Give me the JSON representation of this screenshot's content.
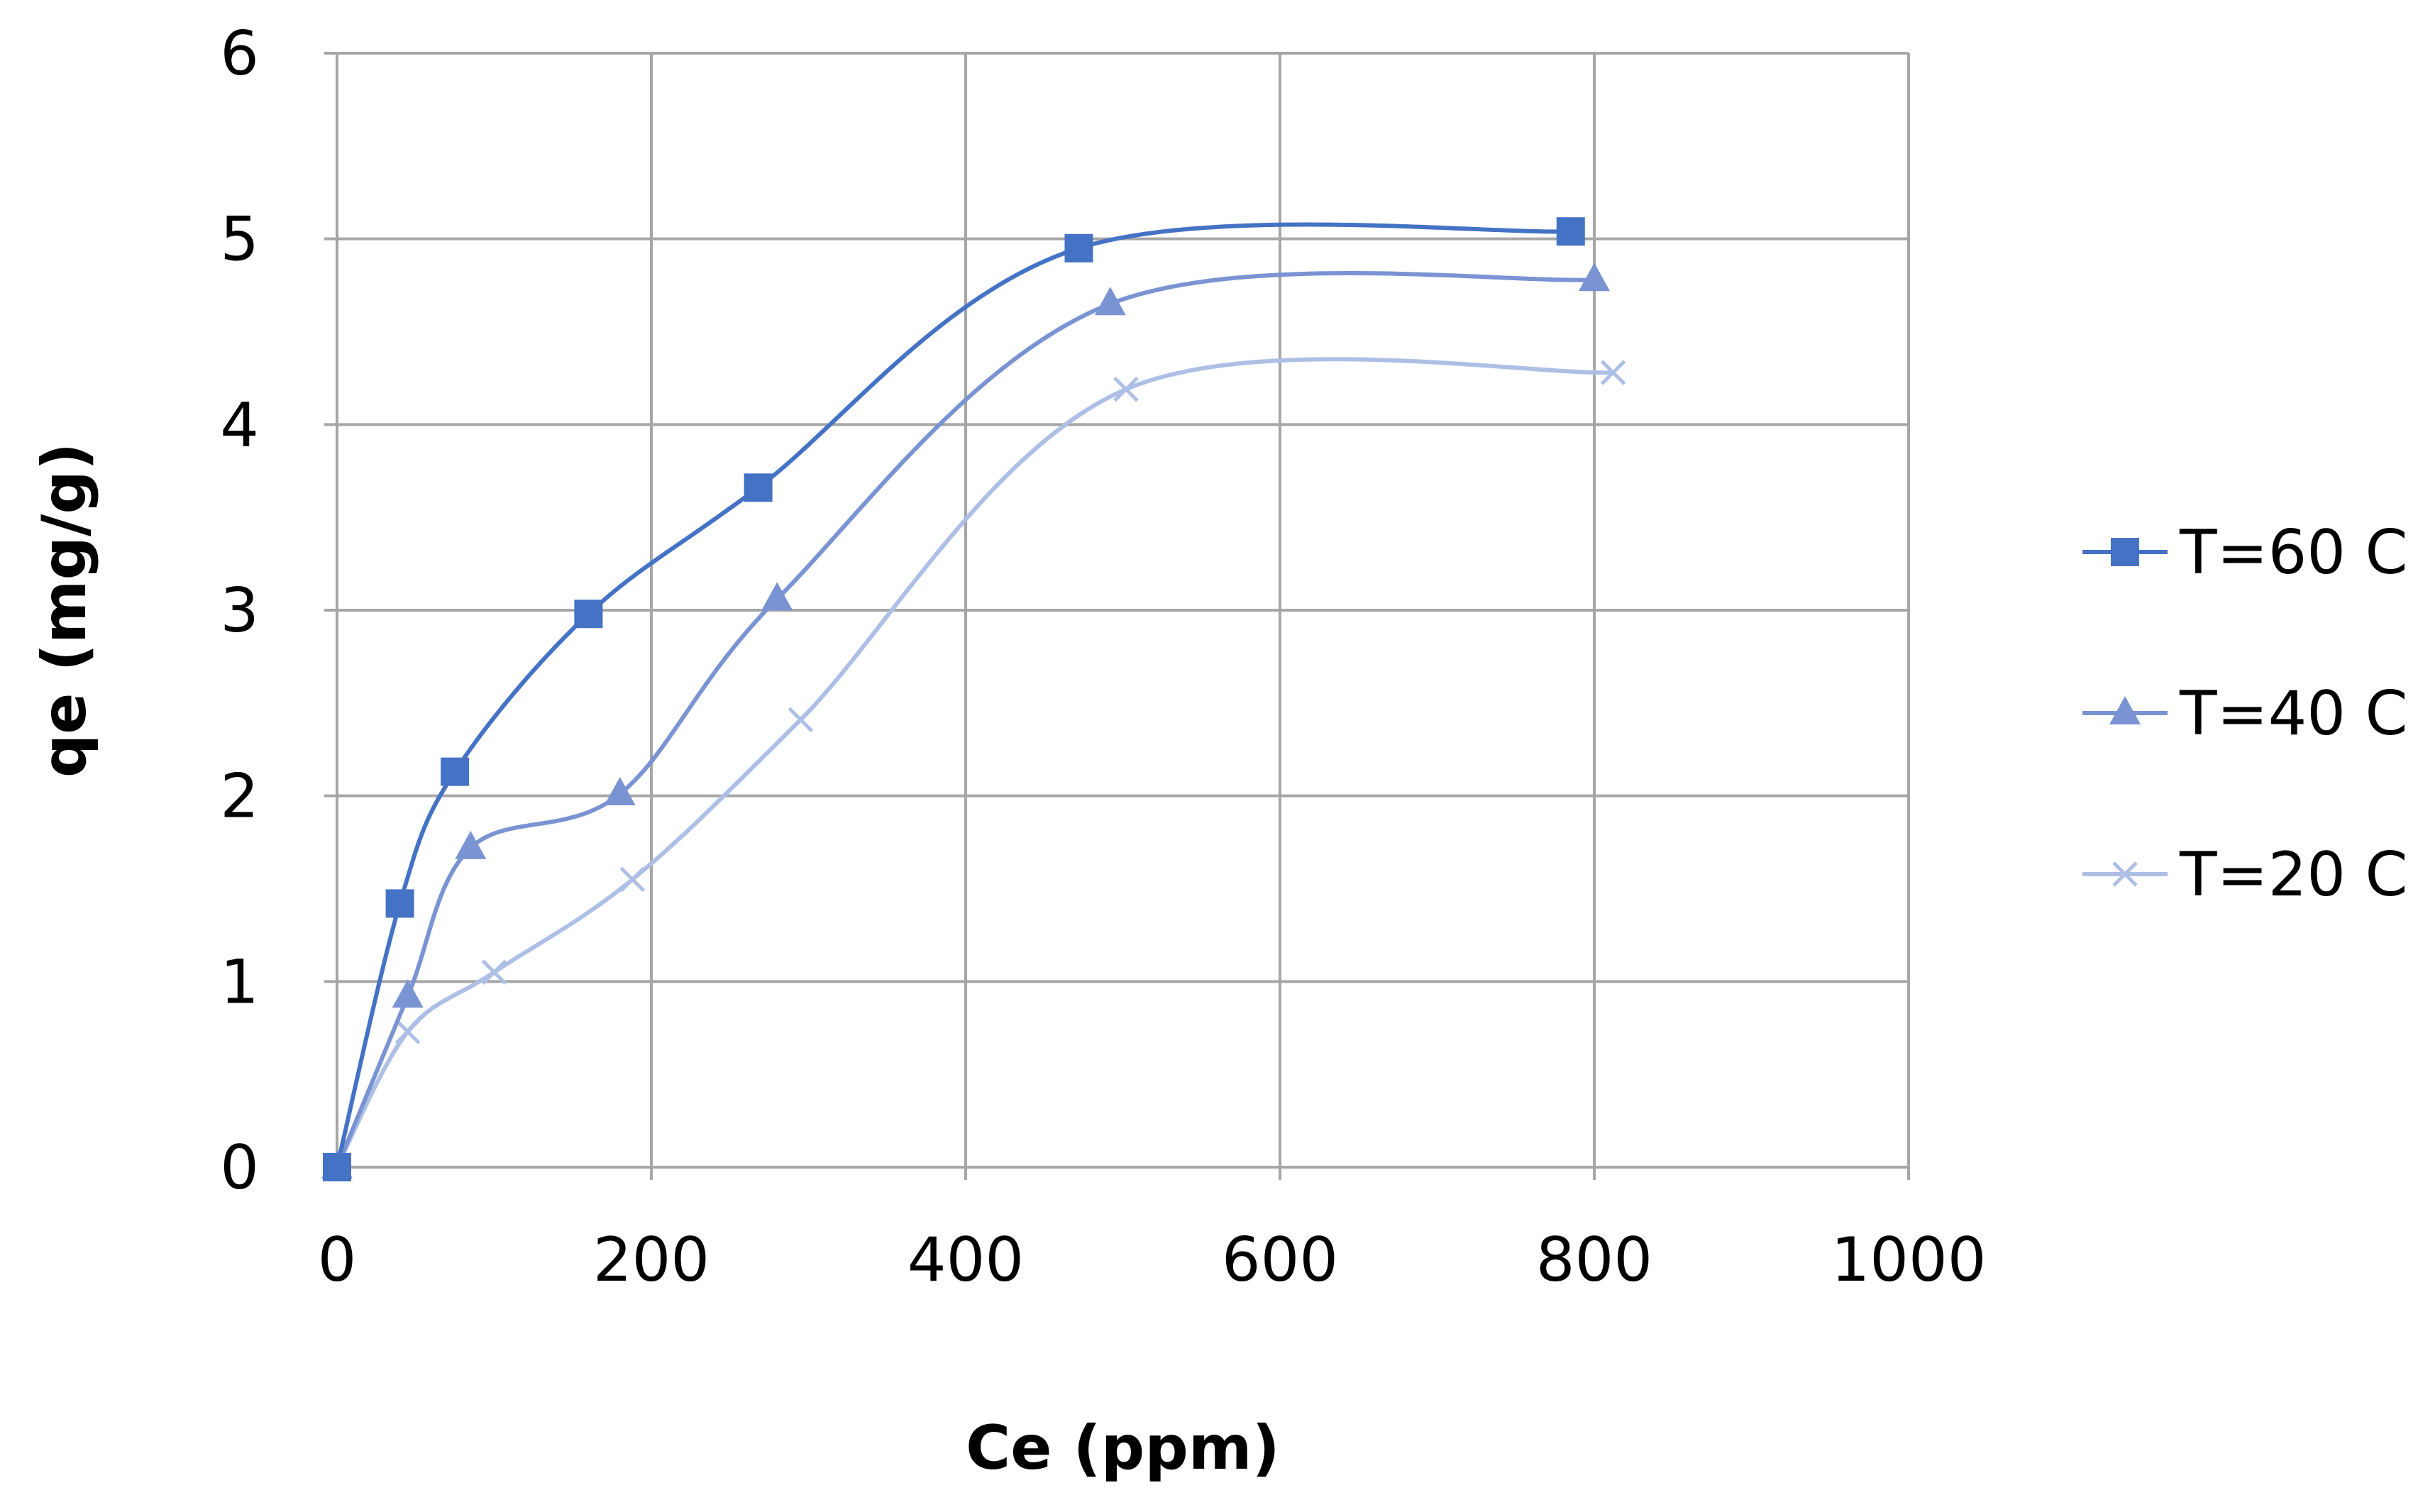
{
  "chart_data": {
    "type": "line",
    "title": "",
    "xlabel": "Ce (ppm)",
    "ylabel": "qe (mg/g)",
    "xlim": [
      0,
      1000
    ],
    "ylim": [
      0,
      6
    ],
    "x_ticks": [
      "0",
      "200",
      "400",
      "600",
      "800",
      "1000"
    ],
    "y_ticks": [
      "0",
      "1",
      "2",
      "3",
      "4",
      "5",
      "6"
    ],
    "grid": true,
    "smooth": true,
    "legend_position": "right",
    "series": [
      {
        "name": "T=60 C",
        "color": "#4472C4",
        "marker": "square",
        "x": [
          0,
          40,
          75,
          160,
          268,
          472,
          785
        ],
        "y": [
          0,
          1.42,
          2.13,
          2.98,
          3.66,
          4.95,
          5.04
        ]
      },
      {
        "name": "T=40 C",
        "color": "#7A93D3",
        "marker": "triangle",
        "x": [
          0,
          45,
          85,
          180,
          280,
          492,
          800
        ],
        "y": [
          0,
          0.92,
          1.72,
          2.01,
          3.06,
          4.65,
          4.78
        ]
      },
      {
        "name": "T=20 C",
        "color": "#AEBFE6",
        "marker": "x",
        "x": [
          0,
          45,
          100,
          188,
          295,
          502,
          812
        ],
        "y": [
          0,
          0.73,
          1.05,
          1.55,
          2.41,
          4.19,
          4.28
        ]
      }
    ]
  }
}
